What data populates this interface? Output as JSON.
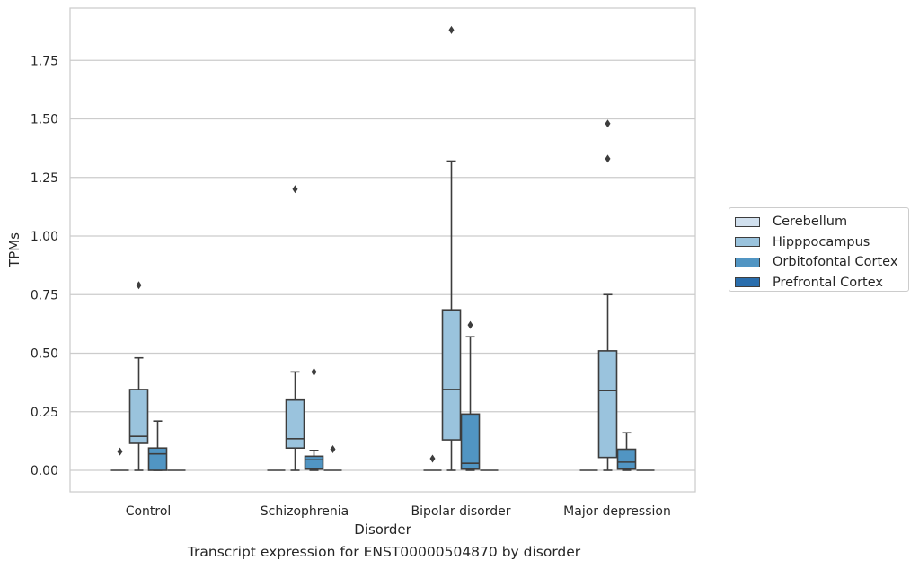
{
  "chart_data": {
    "type": "box",
    "xlabel": "Disorder",
    "ylabel": "TPMs",
    "caption": "Transcript expression for ENST00000504870 by disorder",
    "ylim": [
      -0.09,
      1.97
    ],
    "yticks": [
      "0.00",
      "0.25",
      "0.50",
      "0.75",
      "1.00",
      "1.25",
      "1.50",
      "1.75"
    ],
    "grid": "horizontal",
    "legend_position": "right",
    "categories": [
      "Control",
      "Schizophrenia",
      "Bipolar disorder",
      "Major depression"
    ],
    "series": [
      {
        "name": "Cerebellum",
        "color": "#d1e0ee",
        "boxes": [
          {
            "min": 0,
            "q1": 0,
            "median": 0,
            "q3": 0,
            "max": 0,
            "outliers": [
              0.08
            ]
          },
          {
            "min": 0,
            "q1": 0,
            "median": 0,
            "q3": 0,
            "max": 0,
            "outliers": []
          },
          {
            "min": 0,
            "q1": 0,
            "median": 0,
            "q3": 0,
            "max": 0,
            "outliers": [
              0.05
            ]
          },
          {
            "min": 0,
            "q1": 0,
            "median": 0,
            "q3": 0,
            "max": 0,
            "outliers": []
          }
        ]
      },
      {
        "name": "Hipppocampus",
        "color": "#9ac3dd",
        "boxes": [
          {
            "min": 0,
            "q1": 0.115,
            "median": 0.145,
            "q3": 0.345,
            "max": 0.48,
            "outliers": [
              0.79
            ]
          },
          {
            "min": 0,
            "q1": 0.095,
            "median": 0.135,
            "q3": 0.3,
            "max": 0.42,
            "outliers": [
              1.2
            ]
          },
          {
            "min": 0,
            "q1": 0.13,
            "median": 0.345,
            "q3": 0.685,
            "max": 1.32,
            "outliers": [
              1.88
            ]
          },
          {
            "min": 0,
            "q1": 0.055,
            "median": 0.34,
            "q3": 0.51,
            "max": 0.75,
            "outliers": [
              1.33,
              1.48
            ]
          }
        ]
      },
      {
        "name": "Orbitofontal Cortex",
        "color": "#5195c3",
        "boxes": [
          {
            "min": 0,
            "q1": 0,
            "median": 0.07,
            "q3": 0.095,
            "max": 0.21,
            "outliers": []
          },
          {
            "min": 0,
            "q1": 0.005,
            "median": 0.045,
            "q3": 0.06,
            "max": 0.085,
            "outliers": [
              0.42
            ]
          },
          {
            "min": 0,
            "q1": 0.005,
            "median": 0.03,
            "q3": 0.24,
            "max": 0.57,
            "outliers": [
              0.62
            ]
          },
          {
            "min": 0,
            "q1": 0.005,
            "median": 0.035,
            "q3": 0.09,
            "max": 0.16,
            "outliers": []
          }
        ]
      },
      {
        "name": "Prefrontal Cortex",
        "color": "#2a6ead",
        "boxes": [
          {
            "min": 0,
            "q1": 0,
            "median": 0,
            "q3": 0,
            "max": 0,
            "outliers": []
          },
          {
            "min": 0,
            "q1": 0,
            "median": 0,
            "q3": 0,
            "max": 0,
            "outliers": [
              0.09
            ]
          },
          {
            "min": 0,
            "q1": 0,
            "median": 0,
            "q3": 0,
            "max": 0,
            "outliers": []
          },
          {
            "min": 0,
            "q1": 0,
            "median": 0,
            "q3": 0,
            "max": 0,
            "outliers": []
          }
        ]
      }
    ]
  }
}
